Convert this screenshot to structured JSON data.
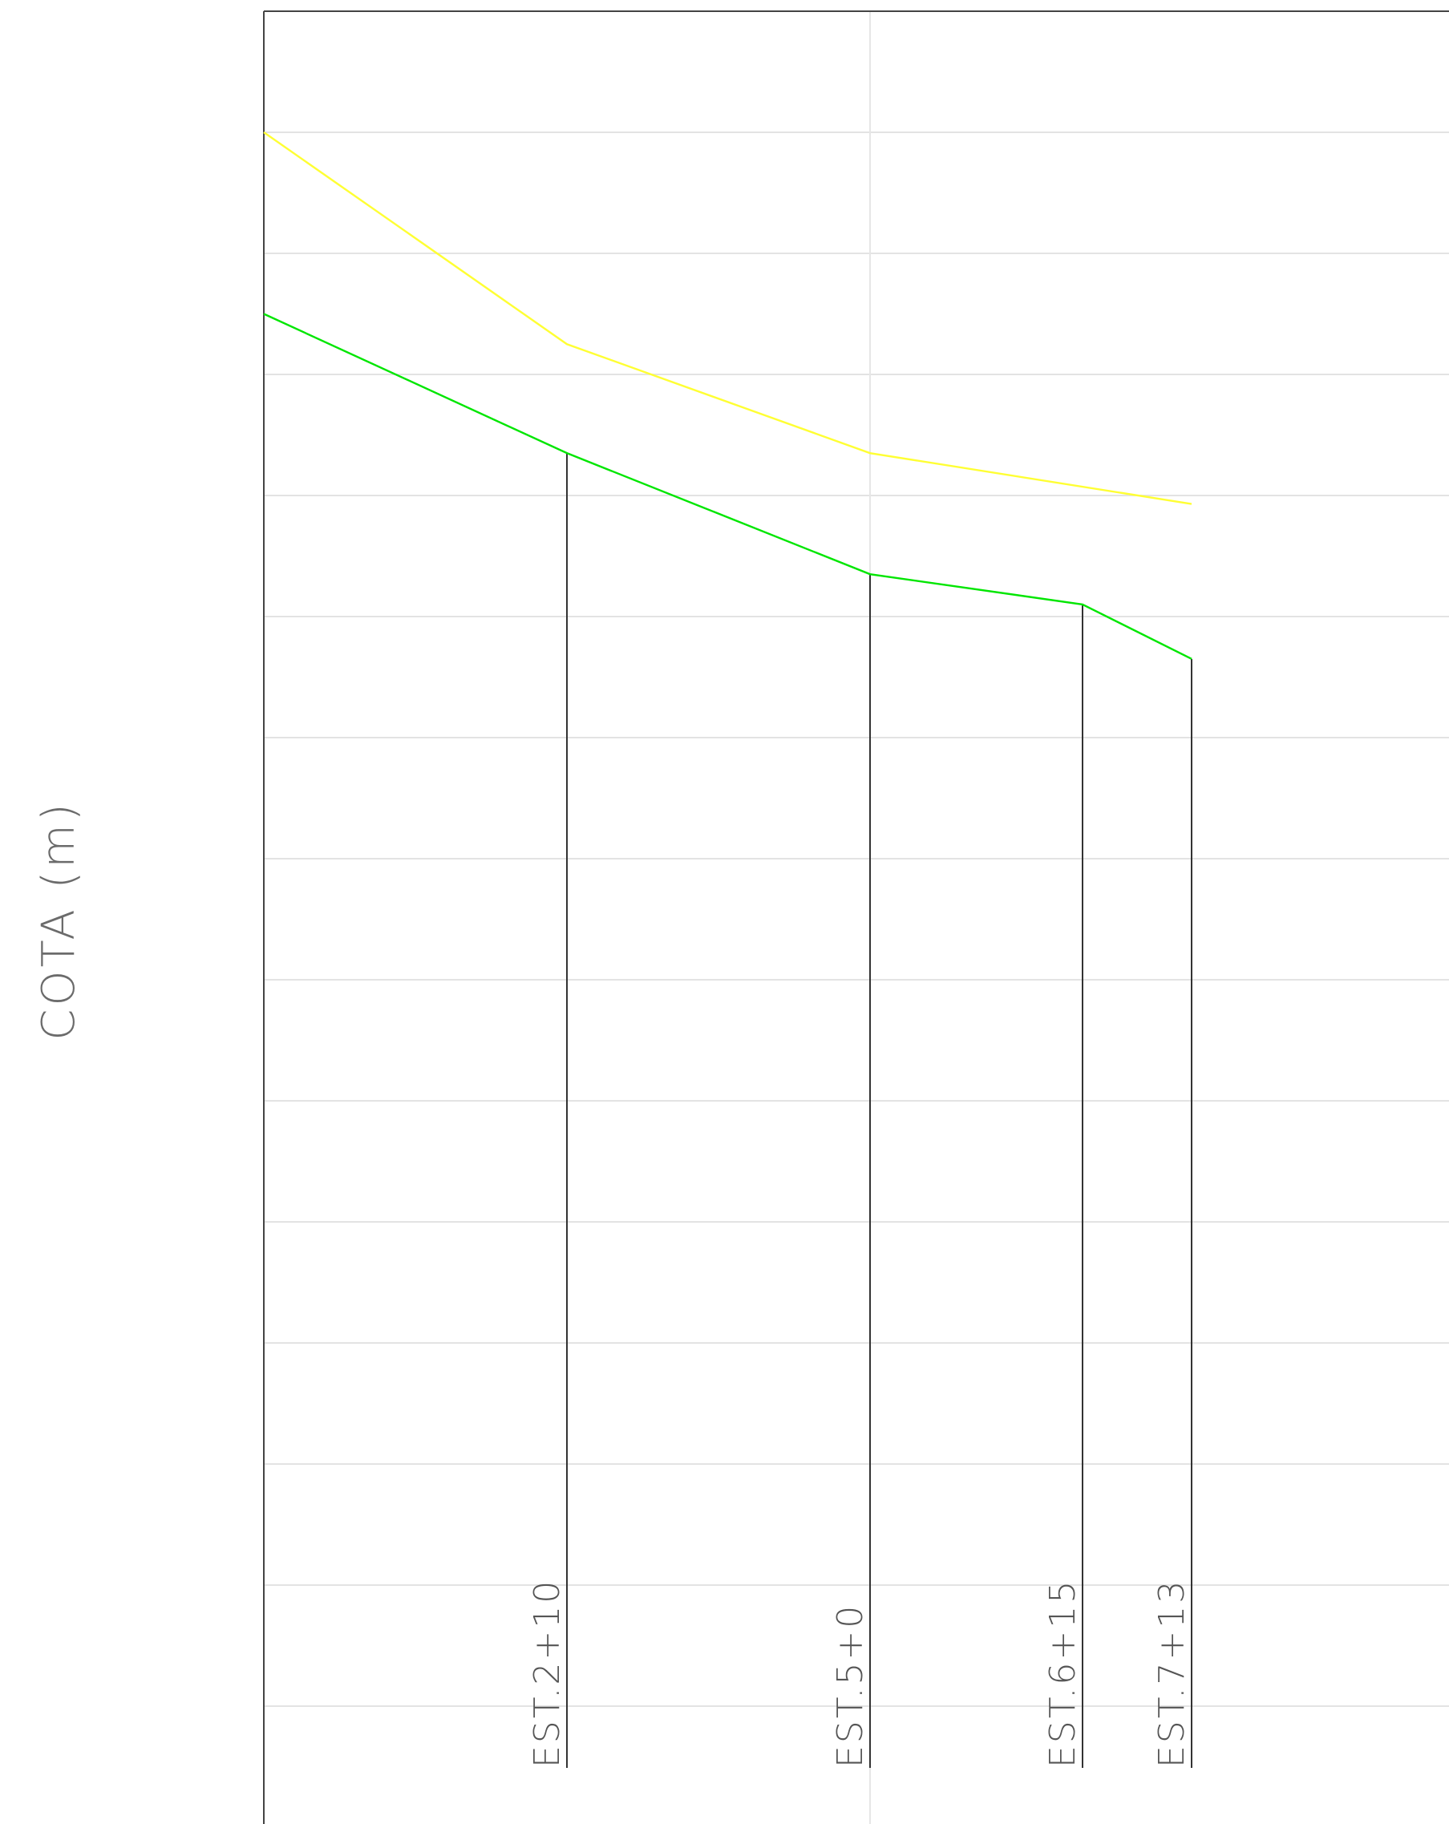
{
  "chart_data": {
    "type": "line",
    "ylabel": "COTA (m)",
    "grid": true,
    "stations": [
      "EST.2+10",
      "EST.5+0",
      "EST.6+15",
      "EST.7+13"
    ],
    "series": [
      {
        "color": "#ffff33",
        "points": [
          {
            "station": "start",
            "level": 13
          },
          {
            "station": "EST.2+10",
            "level": 11.25
          },
          {
            "station": "EST.5+0",
            "level": 10.35
          },
          {
            "station": "EST.7+13",
            "level": 9.93
          }
        ]
      },
      {
        "color": "#00e600",
        "points": [
          {
            "station": "start",
            "level": 11.5
          },
          {
            "station": "EST.2+10",
            "level": 10.35
          },
          {
            "station": "EST.5+0",
            "level": 9.35
          },
          {
            "station": "EST.6+15",
            "level": 9.1
          },
          {
            "station": "EST.7+13",
            "level": 8.65
          }
        ]
      }
    ],
    "y_grid_levels": [
      14,
      13,
      12,
      11,
      10,
      9,
      8,
      7,
      6,
      5,
      4,
      3,
      2,
      1,
      0
    ]
  }
}
